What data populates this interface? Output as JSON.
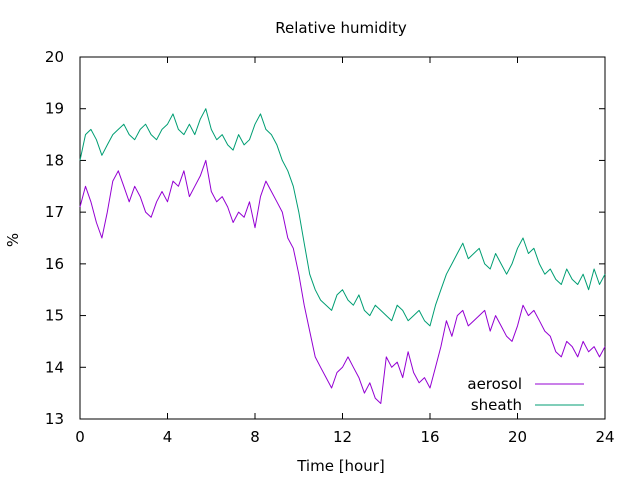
{
  "chart_data": {
    "type": "line",
    "title": "Relative humidity",
    "xlabel": "Time [hour]",
    "ylabel": "%",
    "xlim": [
      0,
      24
    ],
    "ylim": [
      13,
      20
    ],
    "xticks": [
      0,
      4,
      8,
      12,
      16,
      20,
      24
    ],
    "yticks": [
      13,
      14,
      15,
      16,
      17,
      18,
      19,
      20
    ],
    "grid": false,
    "legend_position": "bottom-right",
    "series": [
      {
        "name": "aerosol",
        "color": "#9400d3",
        "x": [
          0,
          0.25,
          0.5,
          0.75,
          1,
          1.25,
          1.5,
          1.75,
          2,
          2.25,
          2.5,
          2.75,
          3,
          3.25,
          3.5,
          3.75,
          4,
          4.25,
          4.5,
          4.75,
          5,
          5.25,
          5.5,
          5.75,
          6,
          6.25,
          6.5,
          6.75,
          7,
          7.25,
          7.5,
          7.75,
          8,
          8.25,
          8.5,
          8.75,
          9,
          9.25,
          9.5,
          9.75,
          10,
          10.25,
          10.5,
          10.75,
          11,
          11.25,
          11.5,
          11.75,
          12,
          12.25,
          12.5,
          12.75,
          13,
          13.25,
          13.5,
          13.75,
          14,
          14.25,
          14.5,
          14.75,
          15,
          15.25,
          15.5,
          15.75,
          16,
          16.25,
          16.5,
          16.75,
          17,
          17.25,
          17.5,
          17.75,
          18,
          18.25,
          18.5,
          18.75,
          19,
          19.25,
          19.5,
          19.75,
          20,
          20.25,
          20.5,
          20.75,
          21,
          21.25,
          21.5,
          21.75,
          22,
          22.25,
          22.5,
          22.75,
          23,
          23.25,
          23.5,
          23.75,
          24
        ],
        "values": [
          17.1,
          17.5,
          17.2,
          16.8,
          16.5,
          17.0,
          17.6,
          17.8,
          17.5,
          17.2,
          17.5,
          17.3,
          17.0,
          16.9,
          17.2,
          17.4,
          17.2,
          17.6,
          17.5,
          17.8,
          17.3,
          17.5,
          17.7,
          18.0,
          17.4,
          17.2,
          17.3,
          17.1,
          16.8,
          17.0,
          16.9,
          17.2,
          16.7,
          17.3,
          17.6,
          17.4,
          17.2,
          17.0,
          16.5,
          16.3,
          15.8,
          15.2,
          14.7,
          14.2,
          14.0,
          13.8,
          13.6,
          13.9,
          14.0,
          14.2,
          14.0,
          13.8,
          13.5,
          13.7,
          13.4,
          13.3,
          14.2,
          14.0,
          14.1,
          13.8,
          14.3,
          13.9,
          13.7,
          13.8,
          13.6,
          14.0,
          14.4,
          14.9,
          14.6,
          15.0,
          15.1,
          14.8,
          14.9,
          15.0,
          15.1,
          14.7,
          15.0,
          14.8,
          14.6,
          14.5,
          14.8,
          15.2,
          15.0,
          15.1,
          14.9,
          14.7,
          14.6,
          14.3,
          14.2,
          14.5,
          14.4,
          14.2,
          14.5,
          14.3,
          14.4,
          14.2,
          14.4
        ]
      },
      {
        "name": "sheath",
        "color": "#009e73",
        "x": [
          0,
          0.25,
          0.5,
          0.75,
          1,
          1.25,
          1.5,
          1.75,
          2,
          2.25,
          2.5,
          2.75,
          3,
          3.25,
          3.5,
          3.75,
          4,
          4.25,
          4.5,
          4.75,
          5,
          5.25,
          5.5,
          5.75,
          6,
          6.25,
          6.5,
          6.75,
          7,
          7.25,
          7.5,
          7.75,
          8,
          8.25,
          8.5,
          8.75,
          9,
          9.25,
          9.5,
          9.75,
          10,
          10.25,
          10.5,
          10.75,
          11,
          11.25,
          11.5,
          11.75,
          12,
          12.25,
          12.5,
          12.75,
          13,
          13.25,
          13.5,
          13.75,
          14,
          14.25,
          14.5,
          14.75,
          15,
          15.25,
          15.5,
          15.75,
          16,
          16.25,
          16.5,
          16.75,
          17,
          17.25,
          17.5,
          17.75,
          18,
          18.25,
          18.5,
          18.75,
          19,
          19.25,
          19.5,
          19.75,
          20,
          20.25,
          20.5,
          20.75,
          21,
          21.25,
          21.5,
          21.75,
          22,
          22.25,
          22.5,
          22.75,
          23,
          23.25,
          23.5,
          23.75,
          24
        ],
        "values": [
          18.0,
          18.5,
          18.6,
          18.4,
          18.1,
          18.3,
          18.5,
          18.6,
          18.7,
          18.5,
          18.4,
          18.6,
          18.7,
          18.5,
          18.4,
          18.6,
          18.7,
          18.9,
          18.6,
          18.5,
          18.7,
          18.5,
          18.8,
          19.0,
          18.6,
          18.4,
          18.5,
          18.3,
          18.2,
          18.5,
          18.3,
          18.4,
          18.7,
          18.9,
          18.6,
          18.5,
          18.3,
          18.0,
          17.8,
          17.5,
          17.0,
          16.4,
          15.8,
          15.5,
          15.3,
          15.2,
          15.1,
          15.4,
          15.5,
          15.3,
          15.2,
          15.4,
          15.1,
          15.0,
          15.2,
          15.1,
          15.0,
          14.9,
          15.2,
          15.1,
          14.9,
          15.0,
          15.1,
          14.9,
          14.8,
          15.2,
          15.5,
          15.8,
          16.0,
          16.2,
          16.4,
          16.1,
          16.2,
          16.3,
          16.0,
          15.9,
          16.2,
          16.0,
          15.8,
          16.0,
          16.3,
          16.5,
          16.2,
          16.3,
          16.0,
          15.8,
          15.9,
          15.7,
          15.6,
          15.9,
          15.7,
          15.6,
          15.8,
          15.5,
          15.9,
          15.6,
          15.8
        ]
      }
    ]
  }
}
